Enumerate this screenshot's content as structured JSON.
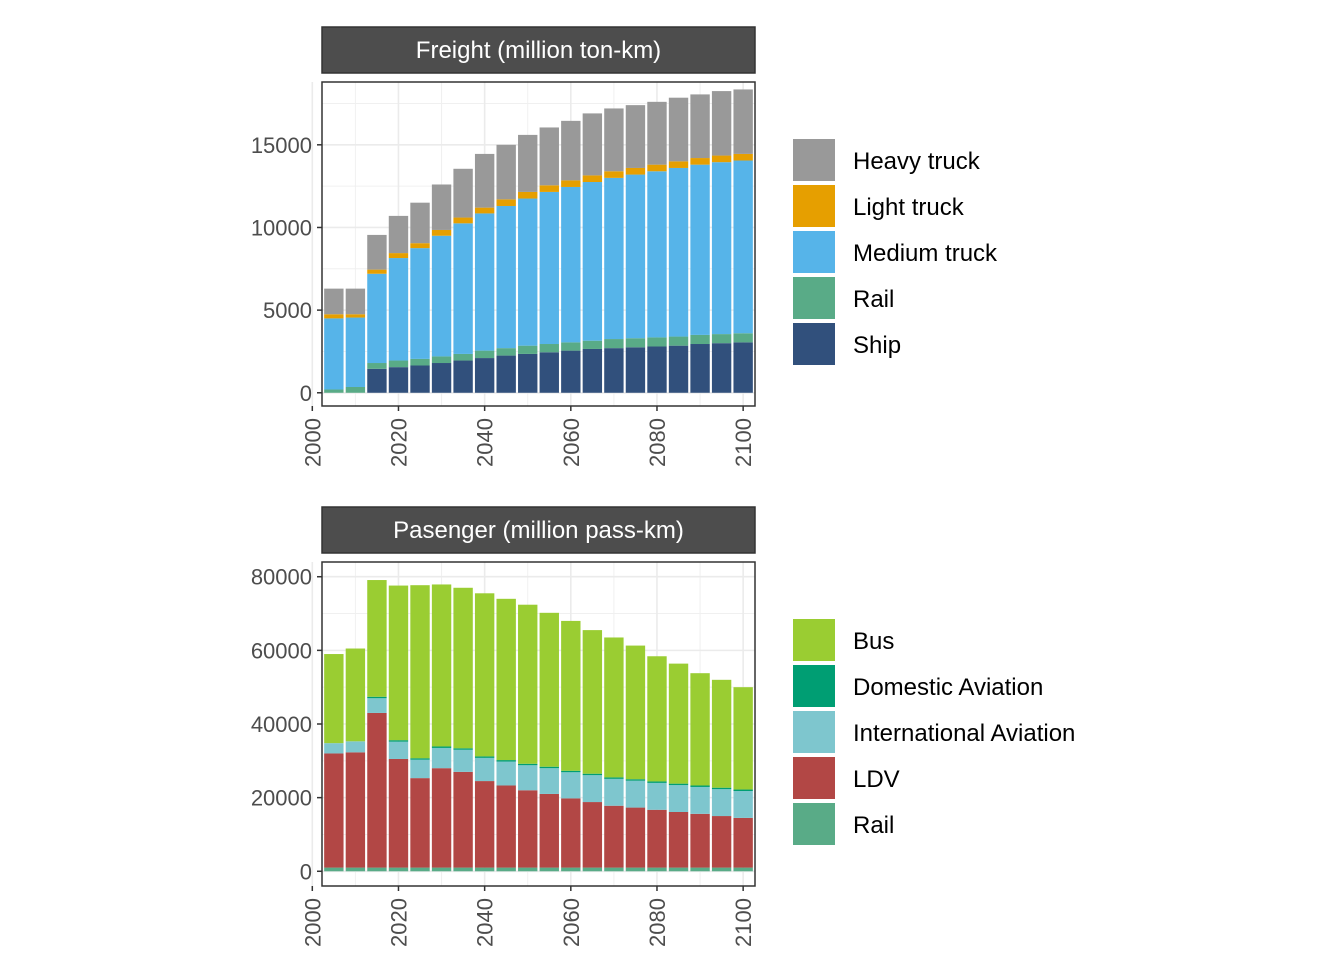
{
  "chart_data": [
    {
      "type": "bar",
      "stacked": true,
      "title": "Freight (million ton-km)",
      "x": [
        2005,
        2010,
        2015,
        2020,
        2025,
        2030,
        2035,
        2040,
        2045,
        2050,
        2055,
        2060,
        2065,
        2070,
        2075,
        2080,
        2085,
        2090,
        2095,
        2100
      ],
      "ylim": [
        -800,
        18800
      ],
      "yticks": [
        0,
        5000,
        10000,
        15000
      ],
      "xticks": [
        2000,
        2020,
        2040,
        2060,
        2080,
        2100
      ],
      "grid": true,
      "legend_position": "right",
      "series": [
        {
          "name": "Ship",
          "color": "#31507c",
          "values": [
            0,
            0,
            1450,
            1550,
            1650,
            1800,
            1950,
            2100,
            2250,
            2350,
            2450,
            2550,
            2650,
            2700,
            2750,
            2800,
            2850,
            2950,
            3000,
            3050
          ]
        },
        {
          "name": "Rail",
          "color": "#59ab87",
          "values": [
            200,
            350,
            350,
            400,
            400,
            400,
            400,
            450,
            450,
            500,
            500,
            500,
            500,
            550,
            550,
            550,
            550,
            550,
            550,
            550
          ]
        },
        {
          "name": "Medium truck",
          "color": "#56b4e9",
          "values": [
            4300,
            4200,
            5400,
            6200,
            6700,
            7300,
            7900,
            8300,
            8600,
            8900,
            9200,
            9400,
            9600,
            9750,
            9900,
            10050,
            10200,
            10300,
            10400,
            10450
          ]
        },
        {
          "name": "Light truck",
          "color": "#e69f00",
          "values": [
            250,
            200,
            250,
            300,
            300,
            350,
            350,
            350,
            400,
            400,
            400,
            400,
            400,
            400,
            400,
            400,
            400,
            400,
            400,
            400
          ]
        },
        {
          "name": "Heavy truck",
          "color": "#999999",
          "values": [
            1550,
            1550,
            2100,
            2250,
            2450,
            2750,
            2950,
            3250,
            3300,
            3450,
            3500,
            3600,
            3750,
            3800,
            3800,
            3800,
            3850,
            3850,
            3900,
            3900
          ]
        }
      ],
      "legend_order": [
        "Heavy truck",
        "Light truck",
        "Medium truck",
        "Rail",
        "Ship"
      ]
    },
    {
      "type": "bar",
      "stacked": true,
      "title": "Pasenger (million pass-km)",
      "x": [
        2005,
        2010,
        2015,
        2020,
        2025,
        2030,
        2035,
        2040,
        2045,
        2050,
        2055,
        2060,
        2065,
        2070,
        2075,
        2080,
        2085,
        2090,
        2095,
        2100
      ],
      "ylim": [
        -4000,
        84000
      ],
      "yticks": [
        0,
        20000,
        40000,
        60000,
        80000
      ],
      "xticks": [
        2000,
        2020,
        2040,
        2060,
        2080,
        2100
      ],
      "grid": true,
      "legend_position": "right",
      "series": [
        {
          "name": "Rail",
          "color": "#59ab87",
          "values": [
            1000,
            1000,
            1000,
            1000,
            1000,
            1000,
            1000,
            1000,
            1000,
            1000,
            1000,
            1000,
            1000,
            1000,
            1000,
            1000,
            1000,
            1000,
            1000,
            1000
          ]
        },
        {
          "name": "LDV",
          "color": "#b24745",
          "values": [
            31000,
            31300,
            42000,
            29500,
            24300,
            27000,
            26000,
            23500,
            22300,
            21000,
            20000,
            18800,
            17800,
            16800,
            16300,
            15700,
            15100,
            14600,
            14000,
            13500
          ]
        },
        {
          "name": "International Aviation",
          "color": "#7ec6ce",
          "values": [
            2800,
            3000,
            4000,
            4700,
            5000,
            5500,
            6000,
            6300,
            6500,
            6800,
            7000,
            7100,
            7300,
            7300,
            7300,
            7300,
            7300,
            7300,
            7300,
            7300
          ]
        },
        {
          "name": "Domestic Aviation",
          "color": "#009e73",
          "values": [
            0,
            0,
            400,
            400,
            400,
            400,
            400,
            400,
            400,
            400,
            400,
            400,
            400,
            400,
            400,
            400,
            400,
            400,
            400,
            400
          ]
        },
        {
          "name": "Bus",
          "color": "#9acd32",
          "values": [
            24200,
            25200,
            31700,
            42000,
            47000,
            44000,
            43600,
            44300,
            43800,
            43200,
            41800,
            40700,
            39000,
            38000,
            36300,
            34000,
            32600,
            30500,
            29300,
            27800
          ]
        }
      ],
      "legend_order": [
        "Bus",
        "Domestic Aviation",
        "International Aviation",
        "LDV",
        "Rail"
      ]
    }
  ]
}
